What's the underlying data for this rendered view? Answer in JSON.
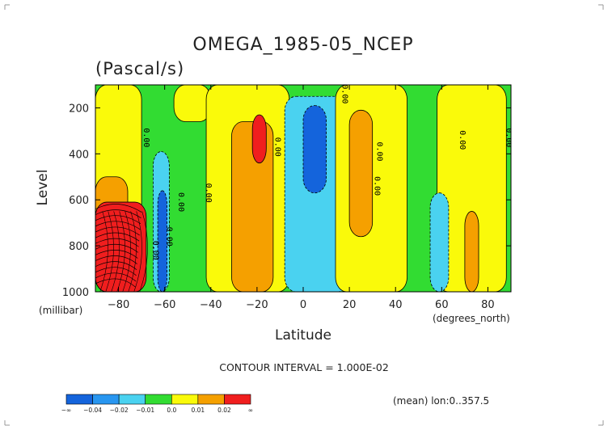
{
  "chart_data": {
    "type": "heatmap",
    "title": "OMEGA_1985-05_NCEP",
    "subtitle": "(Pascal/s)",
    "xlabel": "Latitude",
    "ylabel": "Level",
    "x_units": "(degrees_north)",
    "y_units": "(millibar)",
    "x_ticks": [
      -80,
      -60,
      -40,
      -20,
      0,
      20,
      40,
      60,
      80
    ],
    "y_ticks": [
      200,
      400,
      600,
      800,
      1000
    ],
    "xlim": [
      -90,
      90
    ],
    "ylim": [
      100,
      1000
    ],
    "y_reversed": true,
    "contour_interval_text": "CONTOUR INTERVAL = 1.000E-02",
    "footnote": "(mean) lon:0..357.5",
    "contour_labels": [
      "0.00",
      "0.00",
      "0.00",
      "0.00",
      "0.00",
      "0.00",
      "0.00",
      "0.00",
      "0.00",
      "0.00",
      "0.00"
    ],
    "colorbar": {
      "colors": [
        "#1464dc",
        "#2896f0",
        "#4ad2f0",
        "#32dc32",
        "#fafa0a",
        "#f5a000",
        "#f01e1e"
      ],
      "labels": [
        "-∞",
        "-0.04",
        "-0.02",
        "-0.01",
        "0.0",
        "0.01",
        "0.02",
        "∞"
      ]
    },
    "regions": [
      {
        "level": "green",
        "lat": [
          -90,
          90
        ],
        "p": [
          100,
          1000
        ]
      },
      {
        "level": "yellow",
        "lat": [
          -90,
          -70
        ],
        "p": [
          100,
          1000
        ]
      },
      {
        "level": "orange",
        "lat": [
          -90,
          -76
        ],
        "p": [
          500,
          1000
        ]
      },
      {
        "level": "red",
        "lat": [
          -90,
          -68
        ],
        "p": [
          610,
          1000
        ]
      },
      {
        "level": "yellow",
        "lat": [
          -56,
          -40
        ],
        "p": [
          100,
          260
        ]
      },
      {
        "level": "yellow",
        "lat": [
          -42,
          -6
        ],
        "p": [
          100,
          1000
        ]
      },
      {
        "level": "orange",
        "lat": [
          -31,
          -13
        ],
        "p": [
          260,
          1000
        ]
      },
      {
        "level": "red",
        "lat": [
          -22,
          -16
        ],
        "p": [
          230,
          440
        ]
      },
      {
        "level": "cyan",
        "lat": [
          -65,
          -58
        ],
        "p": [
          390,
          1000
        ]
      },
      {
        "level": "blue",
        "lat": [
          -63,
          -59
        ],
        "p": [
          560,
          1000
        ]
      },
      {
        "level": "cyan",
        "lat": [
          -8,
          20
        ],
        "p": [
          150,
          1000
        ]
      },
      {
        "level": "blue",
        "lat": [
          0,
          10
        ],
        "p": [
          190,
          570
        ]
      },
      {
        "level": "yellow",
        "lat": [
          14,
          45
        ],
        "p": [
          100,
          1000
        ]
      },
      {
        "level": "orange",
        "lat": [
          20,
          30
        ],
        "p": [
          210,
          760
        ]
      },
      {
        "level": "yellow",
        "lat": [
          58,
          88
        ],
        "p": [
          100,
          1000
        ]
      },
      {
        "level": "cyan",
        "lat": [
          55,
          63
        ],
        "p": [
          570,
          1000
        ]
      },
      {
        "level": "orange",
        "lat": [
          70,
          76
        ],
        "p": [
          650,
          1000
        ]
      }
    ]
  }
}
